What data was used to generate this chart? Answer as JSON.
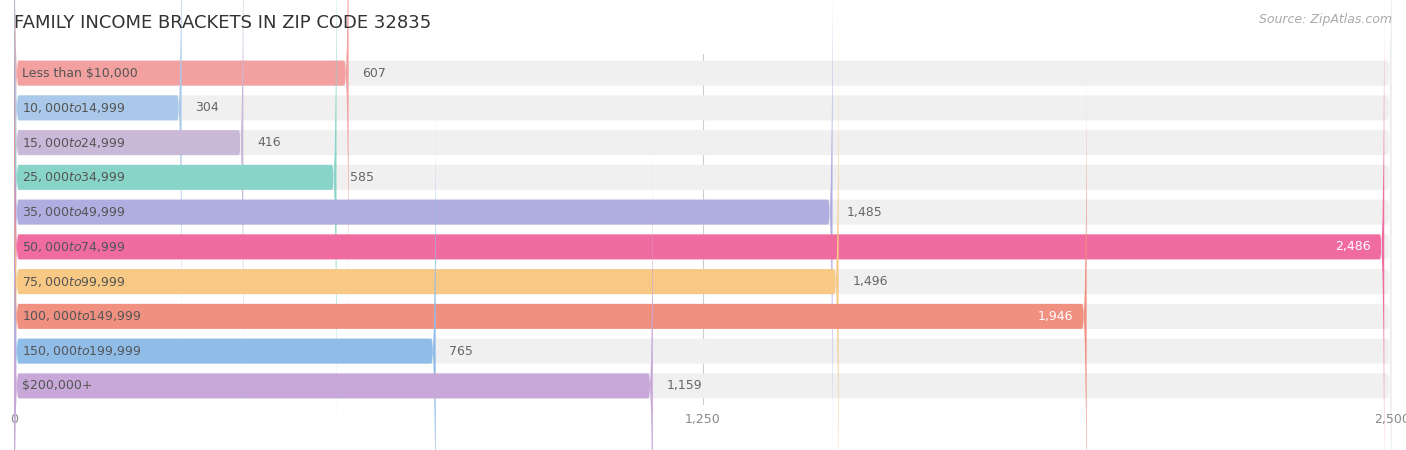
{
  "title": "FAMILY INCOME BRACKETS IN ZIP CODE 32835",
  "source": "Source: ZipAtlas.com",
  "categories": [
    "Less than $10,000",
    "$10,000 to $14,999",
    "$15,000 to $24,999",
    "$25,000 to $34,999",
    "$35,000 to $49,999",
    "$50,000 to $74,999",
    "$75,000 to $99,999",
    "$100,000 to $149,999",
    "$150,000 to $199,999",
    "$200,000+"
  ],
  "values": [
    607,
    304,
    416,
    585,
    1485,
    2486,
    1496,
    1946,
    765,
    1159
  ],
  "bar_colors": [
    "#f2a0a0",
    "#aac9ea",
    "#c9b8d8",
    "#88d4c8",
    "#b0aee0",
    "#f06ca0",
    "#f8c885",
    "#f09080",
    "#90bce8",
    "#c8a8d8"
  ],
  "label_colors": [
    "#777777",
    "#777777",
    "#777777",
    "#777777",
    "#777777",
    "#ffffff",
    "#777777",
    "#ffffff",
    "#777777",
    "#777777"
  ],
  "xlim": [
    0,
    2500
  ],
  "xticks": [
    0,
    1250,
    2500
  ],
  "xtick_labels": [
    "0",
    "1,250",
    "2,500"
  ],
  "fig_bg_color": "#ffffff",
  "row_bg_color": "#f0f0f0",
  "title_fontsize": 13,
  "source_fontsize": 9,
  "label_fontsize": 9,
  "category_fontsize": 9
}
